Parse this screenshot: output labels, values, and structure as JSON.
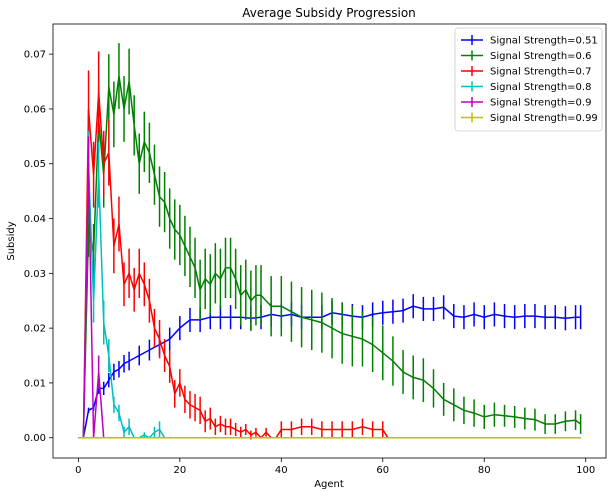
{
  "chart_data": {
    "type": "line",
    "title": "Average Subsidy Progression",
    "xlabel": "Agent",
    "ylabel": "Subsidy",
    "xlim": [
      -5,
      104
    ],
    "ylim": [
      -0.0037,
      0.0755
    ],
    "xticks": [
      0,
      20,
      40,
      60,
      80,
      100
    ],
    "yticks": [
      0.0,
      0.01,
      0.02,
      0.03,
      0.04,
      0.05,
      0.06,
      0.07
    ],
    "ytick_labels": [
      "0.00",
      "0.01",
      "0.02",
      "0.03",
      "0.04",
      "0.05",
      "0.06",
      "0.07"
    ],
    "grid": false,
    "legend_position": "top-right",
    "series": [
      {
        "name": "Signal Strength=0.51",
        "color": "#0000ff",
        "x": [
          0,
          1,
          2,
          3,
          4,
          5,
          6,
          7,
          8,
          9,
          10,
          12,
          14,
          16,
          18,
          20,
          22,
          24,
          26,
          28,
          30,
          32,
          34,
          36,
          38,
          40,
          42,
          44,
          46,
          48,
          50,
          52,
          54,
          56,
          58,
          60,
          62,
          64,
          66,
          68,
          70,
          72,
          74,
          76,
          78,
          80,
          82,
          84,
          86,
          88,
          90,
          92,
          94,
          96,
          98,
          99
        ],
        "y": [
          0.0,
          0.0,
          0.005,
          0.0055,
          0.009,
          0.009,
          0.0105,
          0.012,
          0.0125,
          0.0135,
          0.014,
          0.015,
          0.016,
          0.017,
          0.018,
          0.02,
          0.0215,
          0.0215,
          0.022,
          0.022,
          0.022,
          0.022,
          0.0218,
          0.022,
          0.0225,
          0.0222,
          0.0225,
          0.022,
          0.022,
          0.022,
          0.0228,
          0.0225,
          0.0222,
          0.022,
          0.0225,
          0.0228,
          0.023,
          0.0232,
          0.024,
          0.0235,
          0.0235,
          0.0238,
          0.0222,
          0.022,
          0.0225,
          0.022,
          0.0225,
          0.0222,
          0.022,
          0.0222,
          0.0222,
          0.022,
          0.022,
          0.0218,
          0.022,
          0.022
        ],
        "err": [
          0,
          0,
          0.0005,
          0.0006,
          0.001,
          0.0012,
          0.0013,
          0.0015,
          0.0015,
          0.0016,
          0.0017,
          0.0018,
          0.0019,
          0.002,
          0.0021,
          0.0022,
          0.0022,
          0.0022,
          0.0022,
          0.0022,
          0.0022,
          0.0022,
          0.0022,
          0.0022,
          0.0022,
          0.0022,
          0.0022,
          0.0022,
          0.0022,
          0.0022,
          0.0022,
          0.0022,
          0.0022,
          0.0022,
          0.0022,
          0.0022,
          0.0022,
          0.0022,
          0.0022,
          0.0022,
          0.0022,
          0.0022,
          0.0022,
          0.0022,
          0.0022,
          0.0022,
          0.0022,
          0.0022,
          0.0022,
          0.0022,
          0.0022,
          0.0022,
          0.0022,
          0.0022,
          0.0022,
          0.0022
        ]
      },
      {
        "name": "Signal Strength=0.6",
        "color": "#008000",
        "x": [
          0,
          1,
          2,
          3,
          4,
          5,
          6,
          7,
          8,
          9,
          10,
          11,
          12,
          13,
          14,
          15,
          16,
          17,
          18,
          19,
          20,
          21,
          22,
          23,
          24,
          25,
          26,
          27,
          28,
          29,
          30,
          31,
          32,
          33,
          34,
          35,
          36,
          38,
          40,
          42,
          44,
          46,
          48,
          50,
          52,
          54,
          56,
          58,
          60,
          62,
          64,
          66,
          68,
          70,
          72,
          74,
          76,
          78,
          80,
          82,
          84,
          86,
          88,
          90,
          92,
          94,
          96,
          98,
          99
        ],
        "y": [
          0.0,
          0.0,
          0.038,
          0.034,
          0.058,
          0.048,
          0.064,
          0.059,
          0.066,
          0.06,
          0.065,
          0.057,
          0.05,
          0.054,
          0.052,
          0.048,
          0.044,
          0.043,
          0.04,
          0.038,
          0.037,
          0.035,
          0.033,
          0.031,
          0.027,
          0.029,
          0.028,
          0.03,
          0.029,
          0.031,
          0.031,
          0.029,
          0.026,
          0.027,
          0.025,
          0.026,
          0.026,
          0.024,
          0.024,
          0.023,
          0.022,
          0.0215,
          0.021,
          0.02,
          0.019,
          0.0185,
          0.018,
          0.017,
          0.0155,
          0.014,
          0.012,
          0.011,
          0.0105,
          0.009,
          0.007,
          0.006,
          0.005,
          0.0045,
          0.0038,
          0.0042,
          0.004,
          0.0038,
          0.0035,
          0.0033,
          0.0025,
          0.0025,
          0.003,
          0.0032,
          0.0025
        ],
        "err": [
          0,
          0,
          0.005,
          0.005,
          0.006,
          0.006,
          0.006,
          0.006,
          0.006,
          0.006,
          0.006,
          0.0055,
          0.0055,
          0.0055,
          0.0055,
          0.0055,
          0.0055,
          0.0055,
          0.0055,
          0.0055,
          0.0055,
          0.0055,
          0.0055,
          0.0055,
          0.0055,
          0.0055,
          0.0055,
          0.0055,
          0.0055,
          0.0055,
          0.0055,
          0.0055,
          0.0055,
          0.0055,
          0.0055,
          0.0055,
          0.0055,
          0.0055,
          0.0055,
          0.0055,
          0.0055,
          0.0055,
          0.0055,
          0.0055,
          0.0055,
          0.0055,
          0.005,
          0.005,
          0.005,
          0.0045,
          0.004,
          0.004,
          0.004,
          0.0035,
          0.003,
          0.003,
          0.0025,
          0.0025,
          0.0022,
          0.0022,
          0.002,
          0.002,
          0.002,
          0.002,
          0.0018,
          0.0018,
          0.0018,
          0.0018,
          0.0018
        ]
      },
      {
        "name": "Signal Strength=0.7",
        "color": "#ff0000",
        "x": [
          0,
          1,
          2,
          3,
          4,
          5,
          6,
          7,
          8,
          9,
          10,
          11,
          12,
          13,
          14,
          15,
          16,
          17,
          18,
          19,
          20,
          21,
          22,
          23,
          24,
          25,
          26,
          27,
          28,
          29,
          30,
          31,
          32,
          33,
          34,
          35,
          36,
          37,
          38,
          39,
          40,
          42,
          44,
          46,
          48,
          50,
          52,
          54,
          56,
          58,
          60,
          61,
          62,
          64,
          70,
          80,
          90,
          99
        ],
        "y": [
          0.0,
          0.0,
          0.06,
          0.048,
          0.063,
          0.05,
          0.052,
          0.035,
          0.039,
          0.028,
          0.03,
          0.027,
          0.03,
          0.028,
          0.025,
          0.02,
          0.018,
          0.015,
          0.013,
          0.008,
          0.01,
          0.007,
          0.006,
          0.0055,
          0.005,
          0.003,
          0.0035,
          0.002,
          0.0025,
          0.002,
          0.002,
          0.0015,
          0.001,
          0.0015,
          0.0005,
          0.001,
          0.0,
          0.001,
          0.0,
          0.0,
          0.0015,
          0.0015,
          0.002,
          0.002,
          0.0015,
          0.0015,
          0.0015,
          0.0015,
          0.002,
          0.0015,
          0.0015,
          0.0,
          0.0,
          0.0,
          0.0,
          0.0,
          0.0,
          0.0
        ],
        "err": [
          0,
          0,
          0.007,
          0.006,
          0.0075,
          0.006,
          0.006,
          0.005,
          0.005,
          0.004,
          0.0045,
          0.004,
          0.0045,
          0.004,
          0.004,
          0.0035,
          0.0035,
          0.003,
          0.003,
          0.0025,
          0.0025,
          0.0025,
          0.0025,
          0.0025,
          0.0025,
          0.002,
          0.002,
          0.0015,
          0.0015,
          0.0015,
          0.0015,
          0.0012,
          0.001,
          0.001,
          0.0008,
          0.0008,
          0,
          0.0008,
          0,
          0,
          0.0015,
          0.0015,
          0.0015,
          0.0015,
          0.0015,
          0.0015,
          0.0015,
          0.0015,
          0.0015,
          0.0015,
          0.0015,
          0,
          0,
          0,
          0,
          0,
          0,
          0
        ]
      },
      {
        "name": "Signal Strength=0.8",
        "color": "#00bfbf",
        "x": [
          0,
          1,
          2,
          3,
          4,
          5,
          6,
          7,
          8,
          9,
          10,
          11,
          12,
          13,
          14,
          15,
          16,
          17,
          20,
          40,
          60,
          80,
          99
        ],
        "y": [
          0.0,
          0.0,
          0.05,
          0.025,
          0.048,
          0.021,
          0.015,
          0.006,
          0.0045,
          0.001,
          0.002,
          0.0,
          0.0,
          0.0005,
          0.0,
          0.001,
          0.0015,
          0.0,
          0.0,
          0.0,
          0.0,
          0.0,
          0.0
        ],
        "err": [
          0,
          0,
          0.006,
          0.004,
          0.006,
          0.004,
          0.003,
          0.0015,
          0.0015,
          0.001,
          0.0015,
          0,
          0,
          0.0005,
          0,
          0.001,
          0.0015,
          0,
          0,
          0,
          0,
          0,
          0
        ]
      },
      {
        "name": "Signal Strength=0.9",
        "color": "#bf00bf",
        "x": [
          0,
          1,
          2,
          3,
          4,
          5,
          6,
          20,
          40,
          60,
          80,
          99
        ],
        "y": [
          0.0,
          0.0,
          0.05,
          0.0,
          0.012,
          0.0,
          0.0,
          0.0,
          0.0,
          0.0,
          0.0,
          0.0
        ],
        "err": [
          0,
          0,
          0.005,
          0,
          0.003,
          0,
          0,
          0,
          0,
          0,
          0,
          0
        ]
      },
      {
        "name": "Signal Strength=0.99",
        "color": "#bfbf00",
        "x": [
          0,
          20,
          40,
          60,
          80,
          99
        ],
        "y": [
          0.0,
          0.0,
          0.0,
          0.0,
          0.0,
          0.0
        ],
        "err": [
          0,
          0,
          0,
          0,
          0,
          0
        ]
      }
    ]
  }
}
